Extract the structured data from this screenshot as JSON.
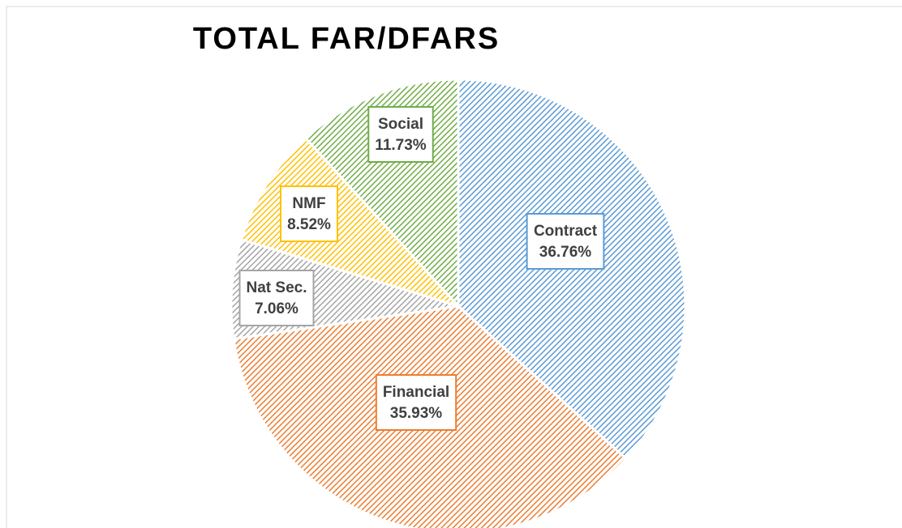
{
  "chart_data": {
    "type": "pie",
    "title": "TOTAL FAR/DFARS",
    "categories": [
      "Contract",
      "Financial",
      "Nat Sec.",
      "NMF",
      "Social"
    ],
    "values": [
      36.76,
      35.93,
      7.06,
      8.52,
      11.73
    ],
    "value_labels": [
      "36.76%",
      "35.93%",
      "7.06%",
      "8.52%",
      "11.73%"
    ],
    "colors": [
      "#5b9bd5",
      "#ed7d31",
      "#a5a5a5",
      "#ffc000",
      "#70ad47"
    ]
  }
}
